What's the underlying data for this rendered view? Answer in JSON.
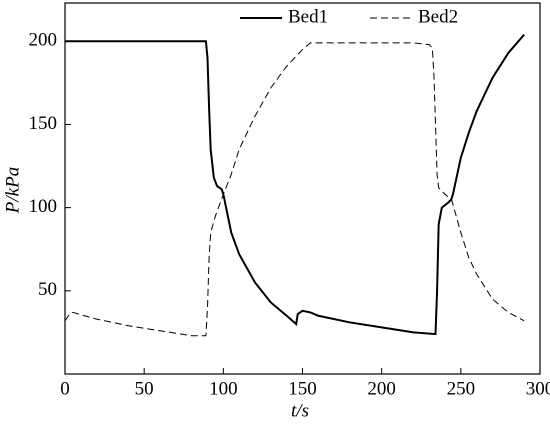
{
  "chart_data": {
    "type": "line",
    "x_label": "t/s",
    "y_label": "P/kPa",
    "xlim": [
      0,
      300
    ],
    "xticks": [
      0,
      50,
      100,
      150,
      200,
      250,
      300
    ],
    "ylim": [
      0,
      223
    ],
    "yticks": [
      50,
      100,
      150,
      200
    ],
    "legend": "top-right",
    "series": [
      {
        "name": "Bed1",
        "color": "#000000",
        "dash": "solid",
        "x": [
          0,
          89,
          90,
          91,
          92,
          94,
          96,
          99,
          100,
          105,
          110,
          120,
          130,
          140,
          146,
          147,
          150,
          155,
          160,
          180,
          200,
          220,
          234,
          235,
          236,
          238,
          242,
          244,
          245,
          250,
          255,
          260,
          270,
          280,
          290
        ],
        "values": [
          200,
          200,
          190,
          160,
          135,
          118,
          113,
          111,
          108,
          85,
          72,
          55,
          43,
          35,
          30,
          36,
          38,
          37,
          35,
          31,
          28,
          25,
          24,
          50,
          90,
          100,
          103,
          105,
          108,
          130,
          145,
          158,
          178,
          193,
          204
        ]
      },
      {
        "name": "Bed2",
        "color": "#000000",
        "dash": "dashed",
        "x": [
          0,
          3,
          5,
          20,
          40,
          60,
          80,
          89,
          90,
          91,
          92,
          95,
          100,
          105,
          110,
          120,
          130,
          140,
          150,
          155,
          160,
          180,
          200,
          220,
          230,
          232,
          233,
          234,
          235,
          236,
          240,
          244,
          245,
          250,
          255,
          260,
          270,
          280,
          290
        ],
        "values": [
          32,
          36,
          37,
          33,
          29,
          26,
          23,
          23,
          40,
          70,
          85,
          95,
          108,
          120,
          135,
          155,
          172,
          185,
          195,
          199,
          199,
          199,
          199,
          199,
          198,
          196,
          180,
          150,
          120,
          112,
          108,
          105,
          102,
          85,
          70,
          60,
          45,
          37,
          32
        ]
      }
    ]
  }
}
